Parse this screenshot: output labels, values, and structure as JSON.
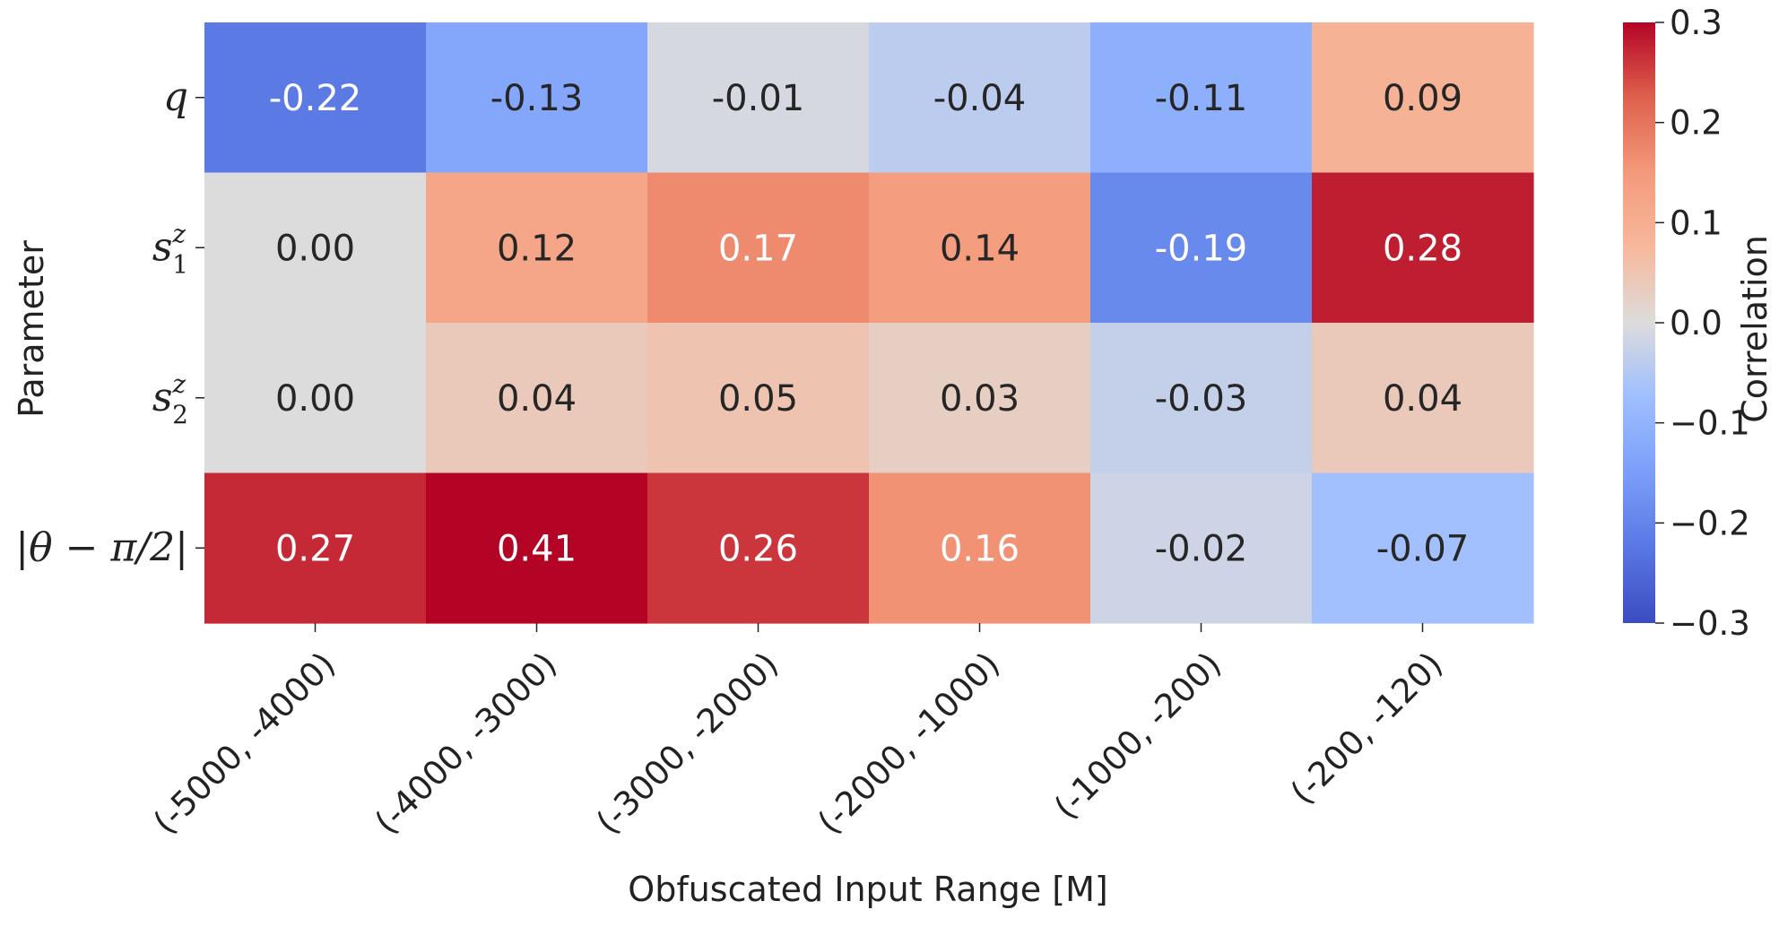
{
  "chart_data": {
    "type": "heatmap",
    "title": "",
    "xlabel": "Obfuscated Input Range [M]",
    "ylabel": "Parameter",
    "colorbar_label": "Correlation",
    "colormap": "coolwarm",
    "vmin": -0.3,
    "vmax": 0.3,
    "colorbar_ticks": [
      "−0.3",
      "−0.2",
      "−0.1",
      "0.0",
      "0.1",
      "0.2",
      "0.3"
    ],
    "x_categories": [
      "(-5000, -4000)",
      "(-4000, -3000)",
      "(-3000, -2000)",
      "(-2000, -1000)",
      "(-1000, -200)",
      "(-200, -120)"
    ],
    "y_categories": [
      {
        "base": "q",
        "sub": "",
        "sup": ""
      },
      {
        "base": "s",
        "sub": "1",
        "sup": "z"
      },
      {
        "base": "s",
        "sub": "2",
        "sup": "z"
      },
      {
        "base": "|θ − π/2|",
        "sub": "",
        "sup": ""
      }
    ],
    "values": [
      [
        -0.22,
        -0.13,
        -0.01,
        -0.04,
        -0.11,
        0.09
      ],
      [
        0.0,
        0.12,
        0.17,
        0.14,
        -0.19,
        0.28
      ],
      [
        0.0,
        0.04,
        0.05,
        0.03,
        -0.03,
        0.04
      ],
      [
        0.27,
        0.41,
        0.26,
        0.16,
        -0.02,
        -0.07
      ]
    ]
  }
}
